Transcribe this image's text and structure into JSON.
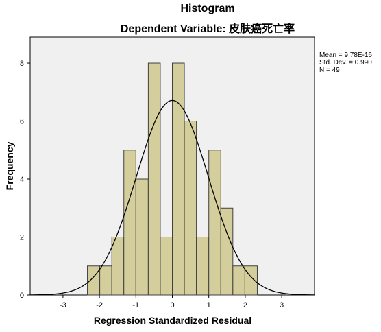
{
  "chart_data": {
    "type": "bar",
    "title": "Histogram",
    "subtitle": "Dependent Variable: 皮肤癌死亡率",
    "xlabel": "Regression Standardized Residual",
    "ylabel": "Frequency",
    "xlim": [
      -3.9,
      3.9
    ],
    "ylim": [
      0,
      8.9
    ],
    "xticks": [
      "-3",
      "-2",
      "-1",
      "0",
      "1",
      "2",
      "3"
    ],
    "yticks": [
      "0",
      "2",
      "4",
      "6",
      "8"
    ],
    "xtick_values": [
      -3,
      -2,
      -1,
      0,
      1,
      2,
      3
    ],
    "ytick_values": [
      0,
      2,
      4,
      6,
      8
    ],
    "bin_edges": [
      -2.33,
      -1.99,
      -1.66,
      -1.33,
      -1.0,
      -0.66,
      -0.33,
      0.0,
      0.33,
      0.66,
      1.0,
      1.33,
      1.66,
      1.99,
      2.33
    ],
    "counts": [
      1,
      1,
      2,
      5,
      4,
      8,
      2,
      8,
      6,
      2,
      5,
      3,
      1,
      1
    ],
    "normal_curve": {
      "mean": 0,
      "sd": 0.99,
      "n": 49
    },
    "stats": {
      "mean_text": "Mean = 9.78E-16",
      "sd_text": "Std. Dev. = 0.990",
      "n_text": "N = 49"
    },
    "grid": false,
    "legend": "none",
    "colors": {
      "bar_fill": "#d3ce9c",
      "bar_stroke": "#404040",
      "plot_bg": "#f0f0f0",
      "curve": "#000000"
    }
  }
}
